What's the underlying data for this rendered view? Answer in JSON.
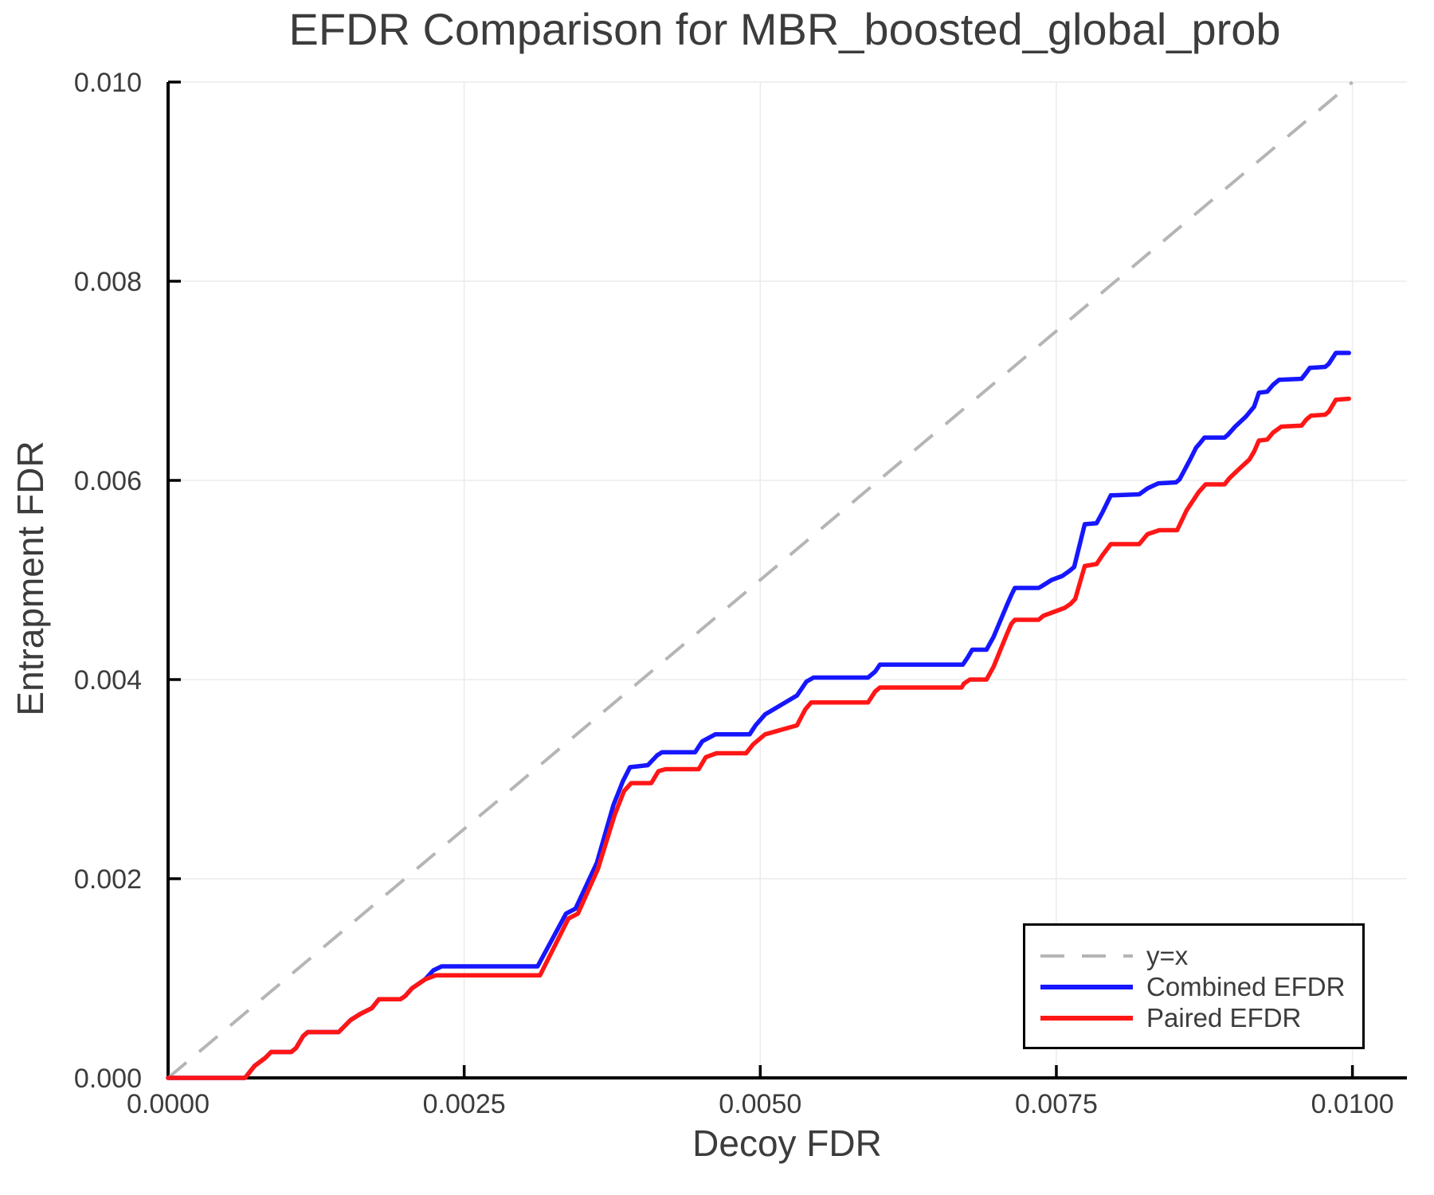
{
  "chart_data": {
    "type": "line",
    "title": "EFDR Comparison for MBR_boosted_global_prob",
    "xlabel": "Decoy FDR",
    "ylabel": "Entrapment FDR",
    "xlim": [
      0.0,
      0.01046
    ],
    "ylim": [
      0.0,
      0.01
    ],
    "grid": true,
    "legend_position": "bottom-right",
    "xticks": {
      "values": [
        0.0,
        0.0025,
        0.005,
        0.0075,
        0.01
      ],
      "labels": [
        "0.0000",
        "0.0025",
        "0.0050",
        "0.0075",
        "0.0100"
      ]
    },
    "yticks": {
      "values": [
        0.0,
        0.002,
        0.004,
        0.006,
        0.008,
        0.01
      ],
      "labels": [
        "0.000",
        "0.002",
        "0.004",
        "0.006",
        "0.008",
        "0.010"
      ]
    },
    "style": {
      "spine_color": "#000000",
      "grid_color": "#ebebeb",
      "text_color": "#3c3c3c",
      "background": "#ffffff"
    },
    "series": [
      {
        "name": "y=x",
        "color": "#b5b5b5",
        "dash": "dashed",
        "points": [
          [
            0.0,
            0.0
          ],
          [
            0.01,
            0.01
          ]
        ]
      },
      {
        "name": "Combined EFDR",
        "color": "#1616ff",
        "dash": "solid",
        "points": [
          [
            0.0,
            0.0
          ],
          [
            0.00065,
            0.0
          ],
          [
            0.00073,
            0.00012
          ],
          [
            0.00082,
            0.0002
          ],
          [
            0.00087,
            0.00026
          ],
          [
            0.00104,
            0.00026
          ],
          [
            0.00108,
            0.0003
          ],
          [
            0.00114,
            0.00042
          ],
          [
            0.00118,
            0.00046
          ],
          [
            0.00144,
            0.00046
          ],
          [
            0.00154,
            0.00058
          ],
          [
            0.00162,
            0.00064
          ],
          [
            0.00172,
            0.0007
          ],
          [
            0.00178,
            0.00079
          ],
          [
            0.00196,
            0.00079
          ],
          [
            0.002,
            0.00082
          ],
          [
            0.00206,
            0.0009
          ],
          [
            0.00217,
            0.00099
          ],
          [
            0.00224,
            0.00108
          ],
          [
            0.00231,
            0.00112
          ],
          [
            0.00312,
            0.00112
          ],
          [
            0.00336,
            0.00165
          ],
          [
            0.00344,
            0.0017
          ],
          [
            0.00362,
            0.00216
          ],
          [
            0.00376,
            0.00274
          ],
          [
            0.00384,
            0.00298
          ],
          [
            0.0039,
            0.00312
          ],
          [
            0.00405,
            0.00314
          ],
          [
            0.00413,
            0.00324
          ],
          [
            0.00417,
            0.00327
          ],
          [
            0.00445,
            0.00327
          ],
          [
            0.00451,
            0.00338
          ],
          [
            0.00462,
            0.00345
          ],
          [
            0.00491,
            0.00345
          ],
          [
            0.00496,
            0.00354
          ],
          [
            0.00504,
            0.00365
          ],
          [
            0.00531,
            0.00384
          ],
          [
            0.00539,
            0.00398
          ],
          [
            0.00545,
            0.00402
          ],
          [
            0.00591,
            0.00402
          ],
          [
            0.00597,
            0.00408
          ],
          [
            0.00601,
            0.00415
          ],
          [
            0.00671,
            0.00415
          ],
          [
            0.00675,
            0.00422
          ],
          [
            0.00679,
            0.0043
          ],
          [
            0.00691,
            0.0043
          ],
          [
            0.00697,
            0.00443
          ],
          [
            0.00708,
            0.00474
          ],
          [
            0.00712,
            0.00485
          ],
          [
            0.00715,
            0.00492
          ],
          [
            0.00735,
            0.00492
          ],
          [
            0.00738,
            0.00494
          ],
          [
            0.00746,
            0.005
          ],
          [
            0.00755,
            0.00504
          ],
          [
            0.00761,
            0.00509
          ],
          [
            0.00765,
            0.00513
          ],
          [
            0.00774,
            0.00556
          ],
          [
            0.00784,
            0.00557
          ],
          [
            0.00789,
            0.00568
          ],
          [
            0.00796,
            0.00585
          ],
          [
            0.0082,
            0.00586
          ],
          [
            0.00827,
            0.00592
          ],
          [
            0.00836,
            0.00597
          ],
          [
            0.00851,
            0.00598
          ],
          [
            0.00854,
            0.00601
          ],
          [
            0.00863,
            0.00621
          ],
          [
            0.00868,
            0.00633
          ],
          [
            0.00871,
            0.00637
          ],
          [
            0.00875,
            0.00643
          ],
          [
            0.00892,
            0.00643
          ],
          [
            0.00895,
            0.00646
          ],
          [
            0.00901,
            0.00654
          ],
          [
            0.0091,
            0.00664
          ],
          [
            0.00917,
            0.00674
          ],
          [
            0.00921,
            0.00688
          ],
          [
            0.00928,
            0.00689
          ],
          [
            0.00933,
            0.00696
          ],
          [
            0.00938,
            0.00701
          ],
          [
            0.00957,
            0.00702
          ],
          [
            0.00961,
            0.00708
          ],
          [
            0.00964,
            0.00713
          ],
          [
            0.00977,
            0.00714
          ],
          [
            0.0098,
            0.00717
          ],
          [
            0.00986,
            0.00728
          ],
          [
            0.00997,
            0.00728
          ]
        ]
      },
      {
        "name": "Paired EFDR",
        "color": "#ff1616",
        "dash": "solid",
        "points": [
          [
            0.0,
            0.0
          ],
          [
            0.00065,
            0.0
          ],
          [
            0.00073,
            0.00012
          ],
          [
            0.00082,
            0.0002
          ],
          [
            0.00087,
            0.00026
          ],
          [
            0.00104,
            0.00026
          ],
          [
            0.00108,
            0.0003
          ],
          [
            0.00114,
            0.00042
          ],
          [
            0.00118,
            0.00046
          ],
          [
            0.00144,
            0.00046
          ],
          [
            0.00154,
            0.00058
          ],
          [
            0.00162,
            0.00064
          ],
          [
            0.00172,
            0.0007
          ],
          [
            0.00178,
            0.00079
          ],
          [
            0.00196,
            0.00079
          ],
          [
            0.002,
            0.00082
          ],
          [
            0.00206,
            0.0009
          ],
          [
            0.00217,
            0.00099
          ],
          [
            0.00226,
            0.00103
          ],
          [
            0.00314,
            0.00103
          ],
          [
            0.00338,
            0.0016
          ],
          [
            0.00346,
            0.00165
          ],
          [
            0.00363,
            0.0021
          ],
          [
            0.00377,
            0.00264
          ],
          [
            0.00385,
            0.00288
          ],
          [
            0.00391,
            0.00296
          ],
          [
            0.00408,
            0.00296
          ],
          [
            0.00414,
            0.00308
          ],
          [
            0.0042,
            0.0031
          ],
          [
            0.00448,
            0.0031
          ],
          [
            0.00454,
            0.00322
          ],
          [
            0.00463,
            0.00326
          ],
          [
            0.00488,
            0.00326
          ],
          [
            0.00494,
            0.00335
          ],
          [
            0.00504,
            0.00345
          ],
          [
            0.00531,
            0.00354
          ],
          [
            0.00538,
            0.0037
          ],
          [
            0.00543,
            0.00377
          ],
          [
            0.00591,
            0.00377
          ],
          [
            0.00597,
            0.00388
          ],
          [
            0.00601,
            0.00392
          ],
          [
            0.0067,
            0.00392
          ],
          [
            0.00672,
            0.00396
          ],
          [
            0.00677,
            0.004
          ],
          [
            0.00691,
            0.004
          ],
          [
            0.00697,
            0.00413
          ],
          [
            0.00708,
            0.00445
          ],
          [
            0.00712,
            0.00456
          ],
          [
            0.00715,
            0.0046
          ],
          [
            0.00735,
            0.0046
          ],
          [
            0.00739,
            0.00464
          ],
          [
            0.00748,
            0.00468
          ],
          [
            0.00757,
            0.00472
          ],
          [
            0.00762,
            0.00476
          ],
          [
            0.00766,
            0.00481
          ],
          [
            0.00774,
            0.00514
          ],
          [
            0.00784,
            0.00516
          ],
          [
            0.00789,
            0.00525
          ],
          [
            0.00796,
            0.00536
          ],
          [
            0.0082,
            0.00536
          ],
          [
            0.00827,
            0.00546
          ],
          [
            0.00837,
            0.0055
          ],
          [
            0.00852,
            0.0055
          ],
          [
            0.0086,
            0.0057
          ],
          [
            0.0087,
            0.00588
          ],
          [
            0.00876,
            0.00596
          ],
          [
            0.00892,
            0.00596
          ],
          [
            0.00896,
            0.00602
          ],
          [
            0.00903,
            0.0061
          ],
          [
            0.00913,
            0.00621
          ],
          [
            0.00917,
            0.00629
          ],
          [
            0.00921,
            0.0064
          ],
          [
            0.00928,
            0.00641
          ],
          [
            0.00933,
            0.00648
          ],
          [
            0.0094,
            0.00654
          ],
          [
            0.00957,
            0.00655
          ],
          [
            0.00961,
            0.00661
          ],
          [
            0.00965,
            0.00665
          ],
          [
            0.00977,
            0.00666
          ],
          [
            0.0098,
            0.00669
          ],
          [
            0.00986,
            0.00681
          ],
          [
            0.00997,
            0.00682
          ]
        ]
      }
    ]
  }
}
